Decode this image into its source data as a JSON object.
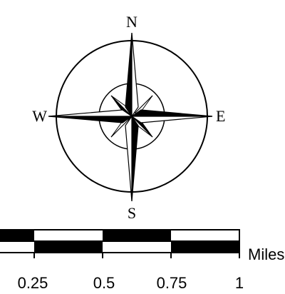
{
  "compass": {
    "north": "N",
    "south": "S",
    "east": "E",
    "west": "W"
  },
  "scale_bar": {
    "unit": "Miles",
    "ticks": [
      "0.25",
      "0.5",
      "0.75",
      "1"
    ]
  }
}
